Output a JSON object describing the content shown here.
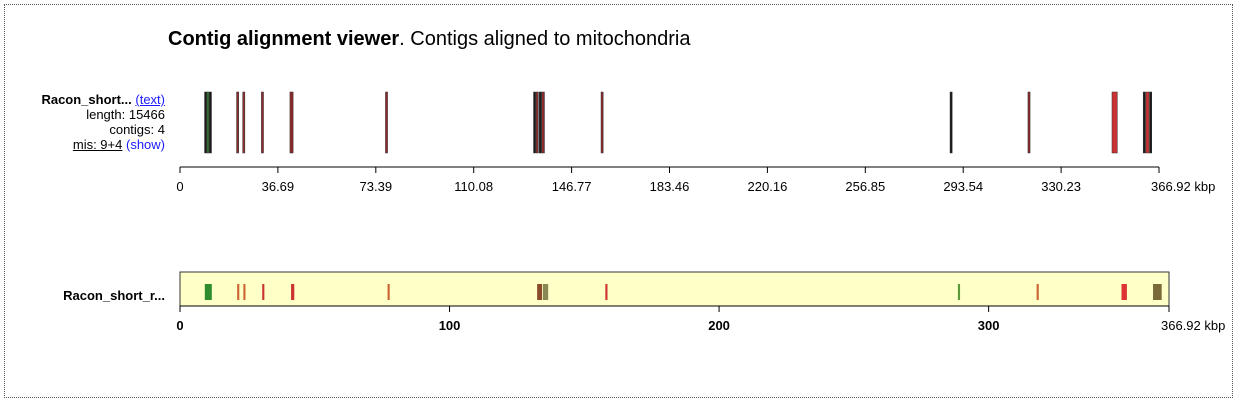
{
  "title": {
    "bold": "Contig alignment viewer",
    "rest": ". Contigs aligned to mitochondria"
  },
  "row1": {
    "name": "Racon_short...",
    "text_link": "(text)",
    "length": "length: 15466",
    "contigs": "contigs: 4",
    "mis": "mis: 9+4",
    "show_link": "(show)"
  },
  "row2": {
    "name": "Racon_short_r..."
  },
  "colors": {
    "panel_bg": "#ffffc8",
    "axis": "#000000"
  },
  "chart_data": [
    {
      "type": "alignment-track",
      "xlim": [
        0,
        366.92
      ],
      "x_unit": "kbp",
      "tick_values": [
        0,
        36.69,
        73.39,
        110.08,
        146.77,
        183.46,
        220.16,
        256.85,
        293.54,
        330.23,
        366.92
      ],
      "tick_labels": [
        "0",
        "36.69",
        "73.39",
        "110.08",
        "146.77",
        "183.46",
        "220.16",
        "256.85",
        "293.54",
        "330.23",
        "366.92 kbp"
      ],
      "blocks": [
        {
          "start": 9.2,
          "end": 9.9,
          "color": "#1a1a1a"
        },
        {
          "start": 10.0,
          "end": 10.9,
          "color": "#2e6b2e"
        },
        {
          "start": 11.0,
          "end": 11.8,
          "color": "#1a1a1a"
        },
        {
          "start": 21.2,
          "end": 22.0,
          "color": "#8b2a2a"
        },
        {
          "start": 23.5,
          "end": 24.3,
          "color": "#8b2a2a"
        },
        {
          "start": 30.5,
          "end": 31.3,
          "color": "#8b2a2a"
        },
        {
          "start": 41.2,
          "end": 42.4,
          "color": "#8b2a2a"
        },
        {
          "start": 77.0,
          "end": 77.8,
          "color": "#8b2a2a"
        },
        {
          "start": 132.5,
          "end": 133.3,
          "color": "#1a1a1a"
        },
        {
          "start": 133.5,
          "end": 134.3,
          "color": "#8b2a2a"
        },
        {
          "start": 134.6,
          "end": 135.4,
          "color": "#1a1a1a"
        },
        {
          "start": 135.6,
          "end": 136.6,
          "color": "#8b2a2a"
        },
        {
          "start": 157.8,
          "end": 158.6,
          "color": "#8b2a2a"
        },
        {
          "start": 288.6,
          "end": 289.4,
          "color": "#1a1a1a"
        },
        {
          "start": 317.8,
          "end": 318.6,
          "color": "#8b2a2a"
        },
        {
          "start": 349.3,
          "end": 351.3,
          "color": "#c83232"
        },
        {
          "start": 361.0,
          "end": 361.8,
          "color": "#1a1a1a"
        },
        {
          "start": 362.0,
          "end": 363.2,
          "color": "#c83232"
        },
        {
          "start": 363.4,
          "end": 364.2,
          "color": "#1a1a1a"
        }
      ]
    },
    {
      "type": "alignment-overview",
      "xlim": [
        0,
        366.92
      ],
      "x_unit": "kbp",
      "tick_values": [
        0,
        100,
        200,
        300,
        366.92
      ],
      "tick_labels": [
        "0",
        "100",
        "200",
        "300",
        "366.92 kbp"
      ],
      "blocks": [
        {
          "start": 9.2,
          "end": 11.8,
          "color": "#2e8b2e"
        },
        {
          "start": 21.2,
          "end": 22.0,
          "color": "#cc6633"
        },
        {
          "start": 23.5,
          "end": 24.3,
          "color": "#cc6633"
        },
        {
          "start": 30.5,
          "end": 31.3,
          "color": "#cc3333"
        },
        {
          "start": 41.2,
          "end": 42.4,
          "color": "#cc3333"
        },
        {
          "start": 77.0,
          "end": 77.8,
          "color": "#cc6633"
        },
        {
          "start": 132.5,
          "end": 134.3,
          "color": "#8b4a2a"
        },
        {
          "start": 134.6,
          "end": 136.6,
          "color": "#888855"
        },
        {
          "start": 157.8,
          "end": 158.6,
          "color": "#cc3333"
        },
        {
          "start": 288.6,
          "end": 289.4,
          "color": "#5a9a3a"
        },
        {
          "start": 317.8,
          "end": 318.6,
          "color": "#cc6633"
        },
        {
          "start": 349.3,
          "end": 351.3,
          "color": "#dd3333"
        },
        {
          "start": 361.0,
          "end": 364.2,
          "color": "#7a6a3a"
        }
      ]
    }
  ]
}
